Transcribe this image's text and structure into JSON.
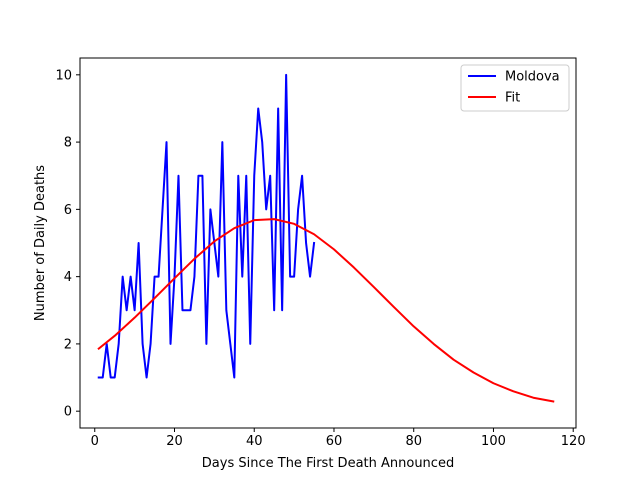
{
  "chart_data": {
    "type": "line",
    "title": "",
    "xlabel": "Days Since The First Death Announced",
    "ylabel": "Number of Daily Deaths",
    "xlim": [
      -3.7,
      120.7
    ],
    "ylim": [
      -0.5,
      10.5
    ],
    "xticks": [
      0,
      20,
      40,
      60,
      80,
      100,
      120
    ],
    "yticks": [
      0,
      2,
      4,
      6,
      8,
      10
    ],
    "xtick_labels": [
      "0",
      "20",
      "40",
      "60",
      "80",
      "100",
      "120"
    ],
    "ytick_labels": [
      "0",
      "2",
      "4",
      "6",
      "8",
      "10"
    ],
    "grid": false,
    "legend_position": "top-right",
    "series": [
      {
        "name": "Moldova",
        "color": "#0000ff",
        "x": [
          1,
          2,
          3,
          4,
          5,
          6,
          7,
          8,
          9,
          10,
          11,
          12,
          13,
          14,
          15,
          16,
          17,
          18,
          19,
          20,
          21,
          22,
          23,
          24,
          25,
          26,
          27,
          28,
          29,
          30,
          31,
          32,
          33,
          34,
          35,
          36,
          37,
          38,
          39,
          40,
          41,
          42,
          43,
          44,
          45,
          46,
          47,
          48,
          49,
          50,
          51,
          52,
          53,
          54,
          55
        ],
        "y": [
          1,
          1,
          2,
          1,
          1,
          2,
          4,
          3,
          4,
          3,
          5,
          2,
          1,
          2,
          4,
          4,
          6,
          8,
          2,
          4,
          7,
          3,
          3,
          3,
          4,
          7,
          7,
          2,
          6,
          5,
          4,
          8,
          3,
          2,
          1,
          7,
          4,
          7,
          2,
          7,
          9,
          8,
          6,
          7,
          3,
          9,
          3,
          10,
          4,
          4,
          6,
          7,
          5,
          4,
          5
        ]
      },
      {
        "name": "Fit",
        "color": "#ff0000",
        "x": [
          1,
          5,
          10,
          15,
          20,
          25,
          30,
          35,
          40,
          45,
          50,
          55,
          60,
          65,
          70,
          75,
          80,
          85,
          90,
          95,
          100,
          105,
          110,
          115
        ],
        "y": [
          1.86,
          2.24,
          2.78,
          3.36,
          3.95,
          4.53,
          5.05,
          5.44,
          5.68,
          5.71,
          5.57,
          5.26,
          4.81,
          4.27,
          3.69,
          3.1,
          2.52,
          2.0,
          1.53,
          1.15,
          0.83,
          0.59,
          0.4,
          0.29
        ]
      }
    ]
  }
}
